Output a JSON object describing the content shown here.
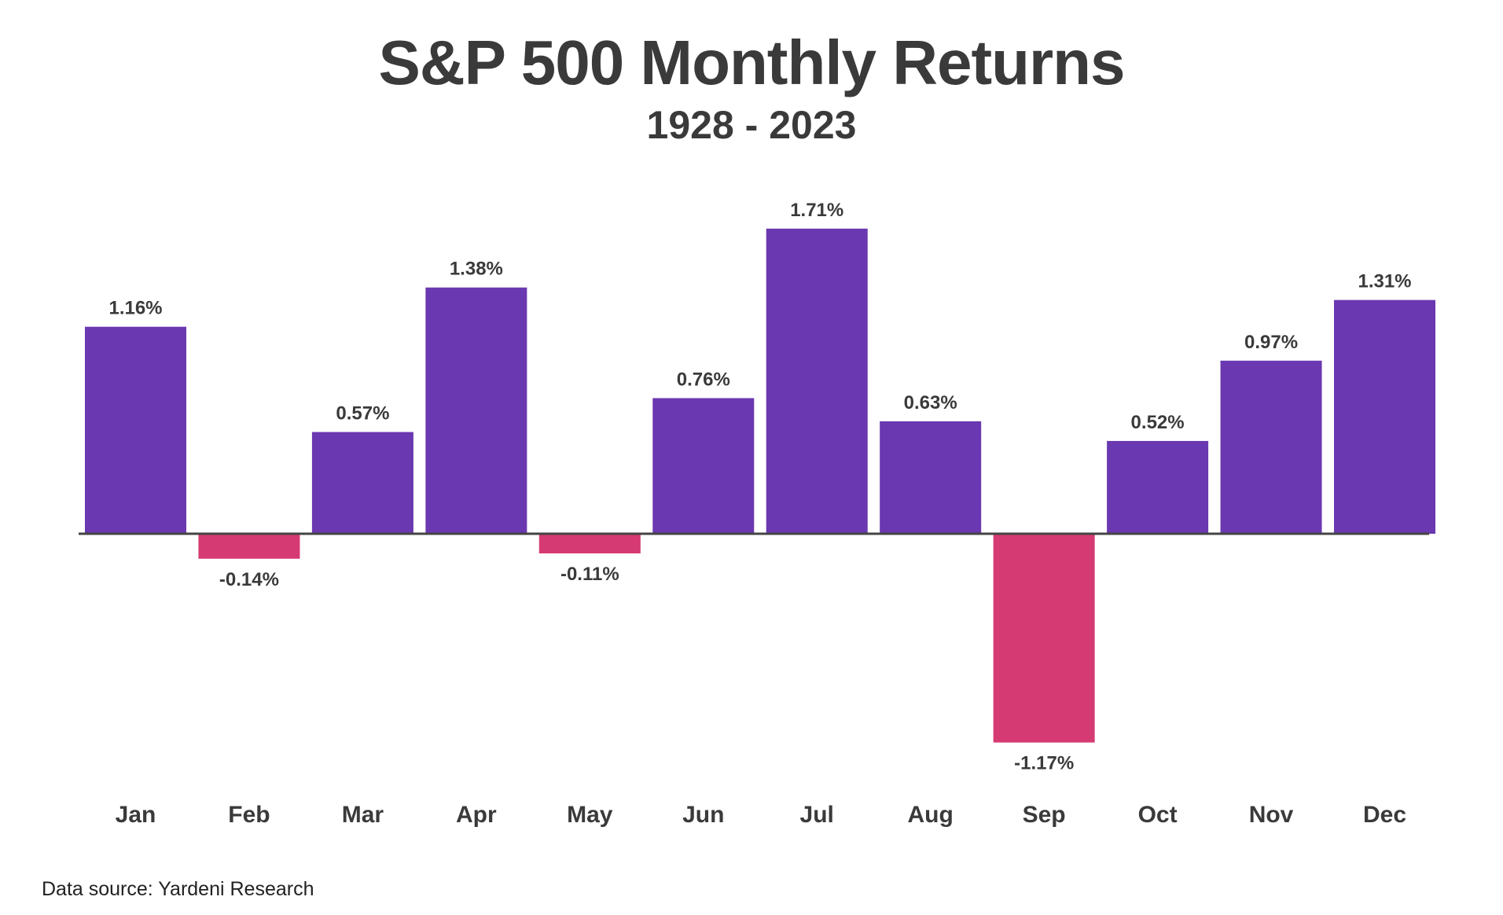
{
  "chart_data": {
    "type": "bar",
    "title": "S&P 500 Monthly Returns",
    "subtitle": "1928 - 2023",
    "categories": [
      "Jan",
      "Feb",
      "Mar",
      "Apr",
      "May",
      "Jun",
      "Jul",
      "Aug",
      "Sep",
      "Oct",
      "Nov",
      "Dec"
    ],
    "values": [
      1.16,
      -0.14,
      0.57,
      1.38,
      -0.11,
      0.76,
      1.71,
      0.63,
      -1.17,
      0.52,
      0.97,
      1.31
    ],
    "data_labels": [
      "1.16%",
      "-0.14%",
      "0.57%",
      "1.38%",
      "-0.11%",
      "0.76%",
      "1.71%",
      "0.63%",
      "-1.17%",
      "0.52%",
      "0.97%",
      "1.31%"
    ],
    "unit": "%",
    "xlabel": "",
    "ylabel": "",
    "ylim": [
      -1.17,
      1.71
    ],
    "grid": false,
    "legend": "none",
    "colors": {
      "positive": "#6a38b0",
      "negative": "#d63a72",
      "axis": "#444444",
      "text": "#3a3a3a"
    }
  },
  "footer": {
    "source": "Data source: Yardeni Research"
  }
}
